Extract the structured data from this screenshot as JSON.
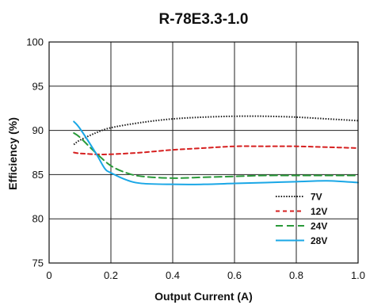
{
  "chart_data": {
    "type": "line",
    "title": "R-78E3.3-1.0",
    "xlabel": "Output Current (A)",
    "ylabel": "Efficiency (%)",
    "xlim": [
      0,
      1.0
    ],
    "ylim": [
      75,
      100
    ],
    "x_ticks": [
      "0",
      "0.2",
      "0.4",
      "0.6",
      "0.8",
      "1.0"
    ],
    "y_ticks": [
      "75",
      "80",
      "85",
      "90",
      "95",
      "100"
    ],
    "grid": true,
    "legend_position": "lower-right",
    "series": [
      {
        "name": "7V",
        "color": "#1a1a1a",
        "style": "dotted",
        "x": [
          0.08,
          0.1,
          0.15,
          0.2,
          0.3,
          0.4,
          0.5,
          0.6,
          0.7,
          0.8,
          0.9,
          1.0
        ],
        "y": [
          88.4,
          88.9,
          89.7,
          90.3,
          90.9,
          91.3,
          91.5,
          91.6,
          91.6,
          91.5,
          91.3,
          91.1
        ]
      },
      {
        "name": "12V",
        "color": "#d62020",
        "style": "dashed",
        "x": [
          0.08,
          0.1,
          0.15,
          0.2,
          0.3,
          0.4,
          0.5,
          0.6,
          0.7,
          0.8,
          0.9,
          1.0
        ],
        "y": [
          87.5,
          87.4,
          87.3,
          87.3,
          87.5,
          87.8,
          88.0,
          88.2,
          88.2,
          88.2,
          88.1,
          88.0
        ]
      },
      {
        "name": "24V",
        "color": "#2a9a3a",
        "style": "longdash",
        "x": [
          0.08,
          0.1,
          0.15,
          0.2,
          0.25,
          0.3,
          0.4,
          0.5,
          0.6,
          0.7,
          0.8,
          0.9,
          1.0
        ],
        "y": [
          89.7,
          89.2,
          87.5,
          86.0,
          85.2,
          84.8,
          84.6,
          84.7,
          84.8,
          84.9,
          84.9,
          84.9,
          84.9
        ]
      },
      {
        "name": "28V",
        "color": "#1aa7e6",
        "style": "solid",
        "x": [
          0.08,
          0.1,
          0.15,
          0.18,
          0.2,
          0.25,
          0.3,
          0.4,
          0.5,
          0.6,
          0.7,
          0.8,
          0.9,
          1.0
        ],
        "y": [
          91.0,
          90.2,
          87.5,
          85.7,
          85.2,
          84.4,
          84.0,
          83.9,
          83.9,
          84.0,
          84.1,
          84.2,
          84.3,
          84.1
        ]
      }
    ]
  }
}
